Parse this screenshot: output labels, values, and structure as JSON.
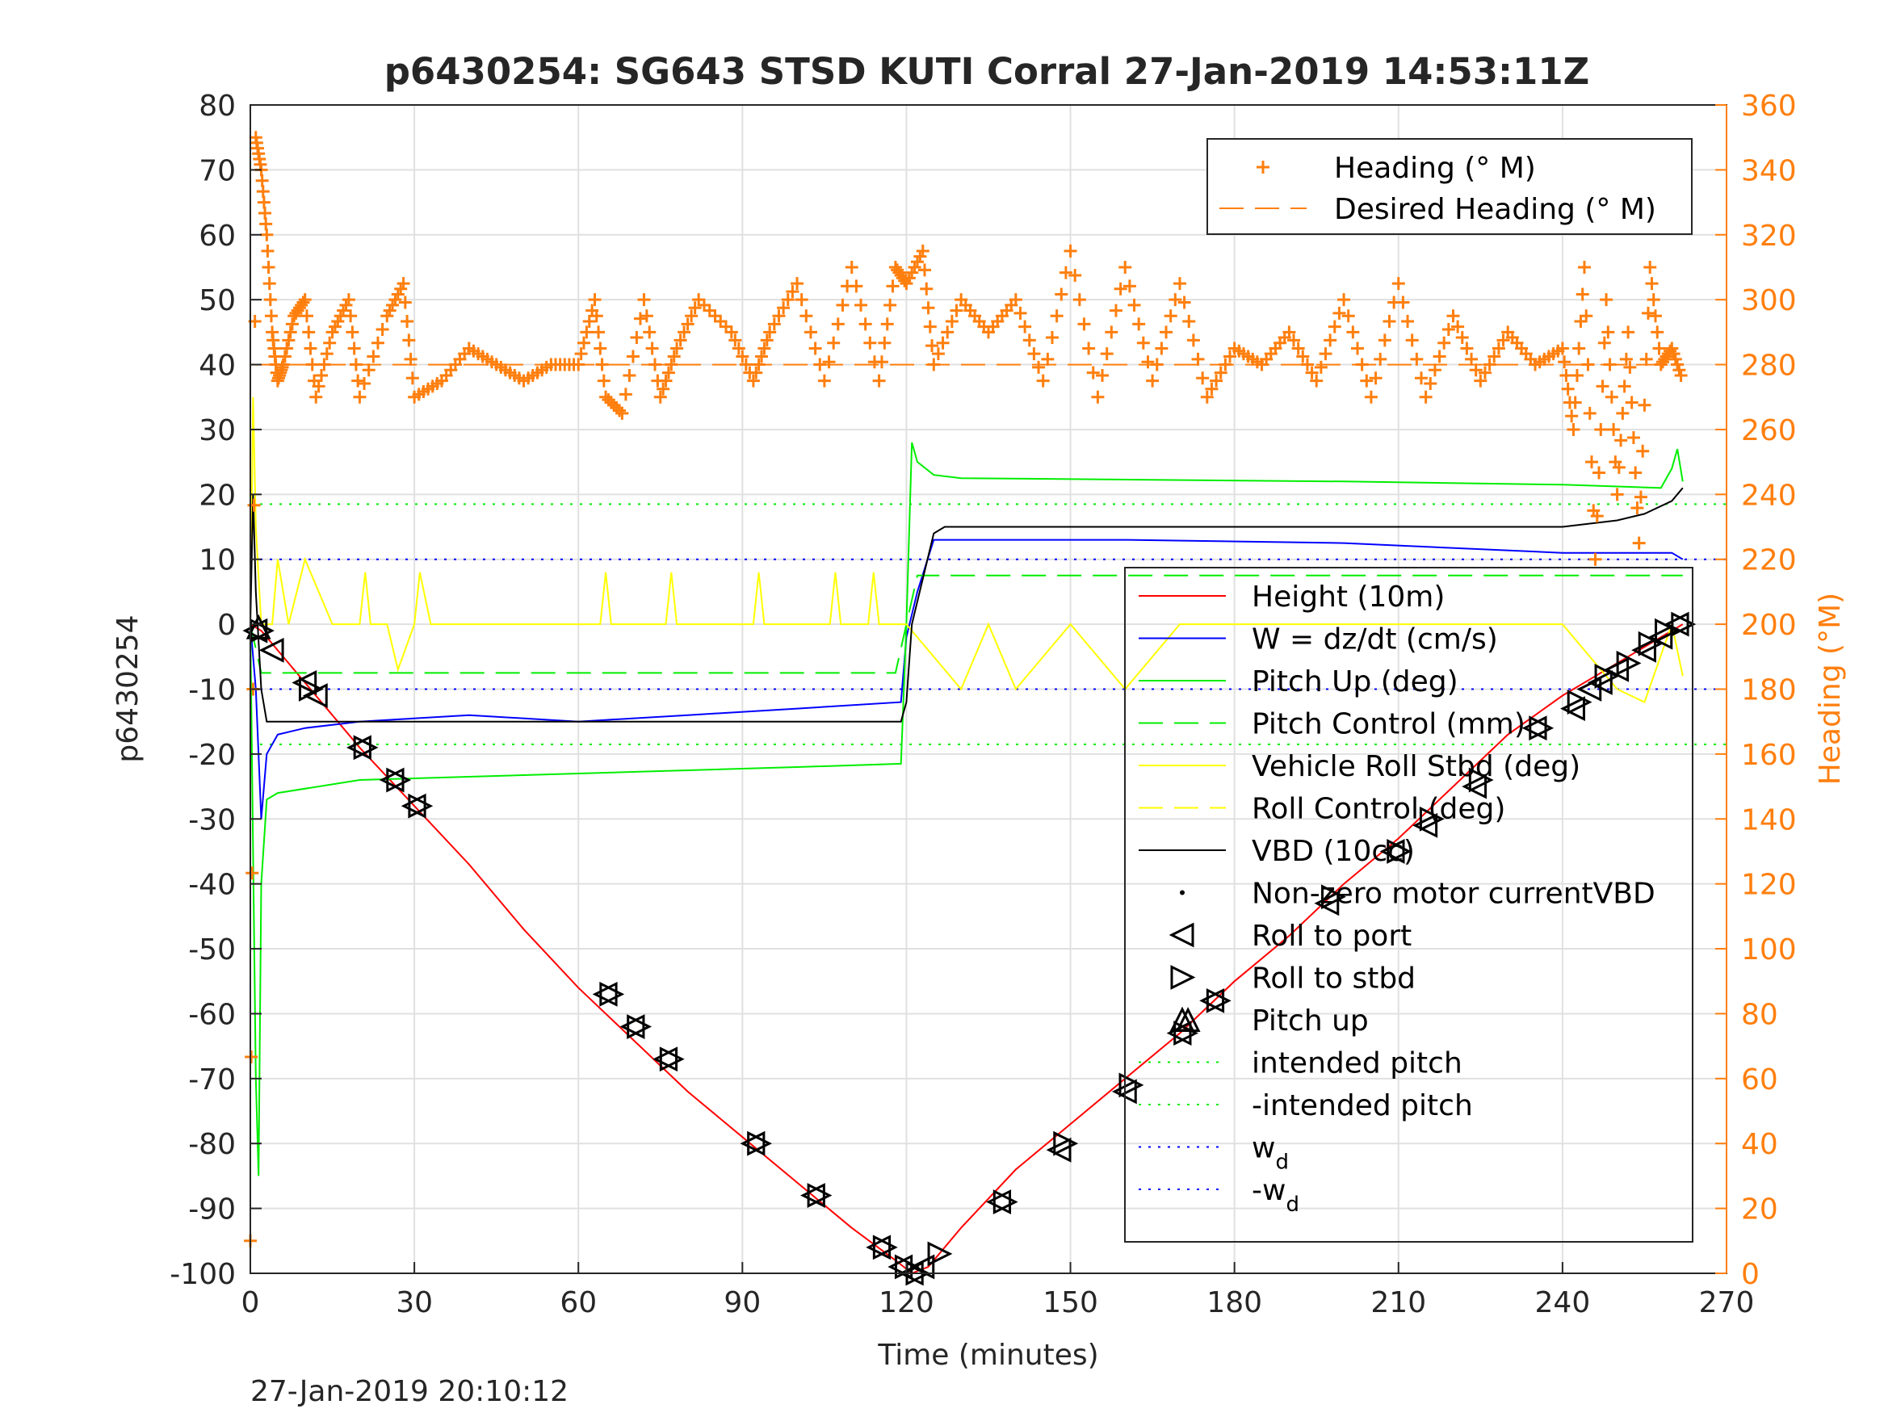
{
  "chart_data": {
    "type": "line",
    "title": "p6430254: SG643 STSD KUTI Corral 27-Jan-2019 14:53:11Z",
    "xlabel": "Time (minutes)",
    "ylabel": "p6430254",
    "ylabel_right": "Heading (°M)",
    "xlim": [
      0,
      270
    ],
    "ylim": [
      -100,
      80
    ],
    "ylim_right": [
      0,
      360
    ],
    "x_ticks": [
      "0",
      "30",
      "60",
      "90",
      "120",
      "150",
      "180",
      "210",
      "240",
      "270"
    ],
    "y_ticks": [
      "80",
      "70",
      "60",
      "50",
      "40",
      "30",
      "20",
      "10",
      "0",
      "-10",
      "-20",
      "-30",
      "-40",
      "-50",
      "-60",
      "-70",
      "-80",
      "-90",
      "-100"
    ],
    "y_ticks_right": [
      "360",
      "340",
      "320",
      "300",
      "280",
      "260",
      "240",
      "220",
      "200",
      "180",
      "160",
      "140",
      "120",
      "100",
      "80",
      "60",
      "40",
      "20",
      "0"
    ],
    "grid": true,
    "footer_timestamp": "27-Jan-2019 20:10:12",
    "colors": {
      "heading": "#ff7f0e",
      "height": "#ff0000",
      "w": "#0000ff",
      "pitch": "#00ee00",
      "roll": "#ffff00",
      "vbd": "#000000",
      "grid": "#e0e0e0"
    },
    "legend_top": {
      "placement": "top-right",
      "entries": [
        {
          "label": "Heading (° M)",
          "style": "plus",
          "color": "#ff7f0e"
        },
        {
          "label": "Desired Heading (° M)",
          "style": "dashed",
          "color": "#ff7f0e"
        }
      ]
    },
    "legend_bottom": {
      "placement": "bottom-right",
      "entries": [
        {
          "label": "Height (10m)",
          "style": "solid",
          "color": "#ff0000"
        },
        {
          "label": "W = dz/dt (cm/s)",
          "style": "solid",
          "color": "#0000ff"
        },
        {
          "label": "Pitch Up (deg)",
          "style": "solid",
          "color": "#00ee00"
        },
        {
          "label": "Pitch Control (mm)",
          "style": "dashed",
          "color": "#00ee00"
        },
        {
          "label": "Vehicle Roll Stbd (deg)",
          "style": "solid",
          "color": "#ffff00"
        },
        {
          "label": "Roll Control (deg)",
          "style": "dashed",
          "color": "#ffff00"
        },
        {
          "label": "VBD (10cc)",
          "style": "solid",
          "color": "#000000"
        },
        {
          "label": "Non-zero motor currentVBD",
          "style": "dot",
          "color": "#000000"
        },
        {
          "label": "Roll to port",
          "style": "tri-left",
          "color": "#000000"
        },
        {
          "label": "Roll to stbd",
          "style": "tri-right",
          "color": "#000000"
        },
        {
          "label": "Pitch up",
          "style": "tri-up",
          "color": "#000000"
        },
        {
          "label": "intended pitch",
          "style": "dotted",
          "color": "#00ee00"
        },
        {
          "label": "-intended pitch",
          "style": "dotted",
          "color": "#00ee00"
        },
        {
          "label": "w",
          "sub": "d",
          "style": "dotted",
          "color": "#0000ff"
        },
        {
          "label": "-w",
          "sub": "d",
          "style": "dotted",
          "color": "#0000ff"
        }
      ]
    },
    "series": [
      {
        "name": "Height (10m)",
        "axis": "left",
        "x": [
          0,
          2,
          10,
          20,
          30,
          40,
          50,
          60,
          70,
          80,
          90,
          100,
          110,
          118,
          121,
          124,
          130,
          140,
          150,
          160,
          170,
          180,
          190,
          200,
          210,
          220,
          230,
          240,
          250,
          262
        ],
        "y": [
          0,
          -1,
          -9,
          -19,
          -28,
          -37,
          -47,
          -56,
          -64,
          -72,
          -79,
          -86,
          -93,
          -98,
          -100,
          -99,
          -93,
          -84,
          -77,
          -70,
          -63,
          -55,
          -48,
          -40,
          -33,
          -25,
          -17,
          -11,
          -6,
          0
        ]
      },
      {
        "name": "W = dz/dt (cm/s)",
        "axis": "left",
        "x": [
          0,
          1,
          2,
          3,
          5,
          10,
          20,
          40,
          60,
          80,
          100,
          119,
          120,
          122,
          125,
          130,
          160,
          200,
          240,
          260,
          262
        ],
        "y": [
          0,
          -10,
          -30,
          -20,
          -17,
          -16,
          -15,
          -14,
          -15,
          -14,
          -13,
          -12,
          -2,
          5,
          13,
          13,
          13,
          12.5,
          11,
          11,
          10
        ]
      },
      {
        "name": "Pitch Up (deg)",
        "axis": "left",
        "x": [
          0,
          1,
          1.5,
          2,
          3,
          5,
          20,
          60,
          100,
          119,
          120,
          121,
          122,
          125,
          130,
          200,
          240,
          258,
          260,
          261,
          262
        ],
        "y": [
          0,
          -70,
          -85,
          -40,
          -27,
          -26,
          -24,
          -23,
          -22,
          -21.5,
          0,
          28,
          25,
          23,
          22.5,
          22,
          21.5,
          21,
          24,
          27,
          22
        ]
      },
      {
        "name": "Pitch Control (mm)",
        "axis": "left",
        "x": [
          0,
          2,
          118,
          120,
          122,
          262
        ],
        "y": [
          0,
          -7.5,
          -7.5,
          0,
          7.5,
          7.5
        ]
      },
      {
        "name": "Vehicle Roll Stbd (deg)",
        "axis": "left",
        "x": [
          0,
          0.5,
          1,
          2,
          4,
          5,
          7,
          10,
          15,
          20,
          21,
          22,
          25,
          27,
          30,
          31,
          33,
          60,
          64,
          65,
          66,
          70,
          76,
          77,
          78,
          90,
          92,
          93,
          94,
          105,
          106,
          107,
          108,
          113,
          114,
          115,
          119,
          120,
          130,
          135,
          140,
          150,
          160,
          170,
          200,
          230,
          240,
          250,
          255,
          260,
          262
        ],
        "y": [
          0,
          35,
          15,
          0,
          0,
          10,
          0,
          10,
          0,
          0,
          8,
          0,
          0,
          -7,
          0,
          8,
          0,
          0,
          0,
          8,
          0,
          0,
          0,
          8,
          0,
          0,
          0,
          8,
          0,
          0,
          0,
          8,
          0,
          0,
          8,
          0,
          0,
          0,
          -10,
          0,
          -10,
          0,
          -10,
          0,
          0,
          0,
          0,
          -10,
          -12,
          0,
          -8
        ]
      },
      {
        "name": "VBD (10cc)",
        "axis": "left",
        "x": [
          0,
          0.5,
          1,
          2,
          3,
          118,
          119,
          120,
          121,
          125,
          127,
          240,
          245,
          250,
          255,
          260,
          262
        ],
        "y": [
          0,
          20,
          5,
          -10,
          -15,
          -15,
          -15,
          -12,
          0,
          14,
          15,
          15,
          15.5,
          16,
          17,
          19,
          21
        ]
      },
      {
        "name": "Heading (° M)",
        "axis": "right",
        "x": [
          0,
          1,
          2,
          3,
          4,
          5,
          6,
          8,
          10,
          12,
          15,
          18,
          20,
          25,
          28,
          30,
          35,
          40,
          45,
          50,
          55,
          60,
          63,
          65,
          68,
          72,
          75,
          78,
          82,
          88,
          92,
          95,
          100,
          105,
          110,
          115,
          118,
          120,
          123,
          125,
          130,
          135,
          140,
          145,
          150,
          155,
          160,
          165,
          170,
          175,
          180,
          185,
          190,
          195,
          200,
          205,
          210,
          215,
          220,
          225,
          230,
          235,
          240,
          242,
          244,
          246,
          248,
          250,
          252,
          254,
          256,
          258,
          260,
          262
        ],
        "y": [
          10,
          350,
          340,
          320,
          290,
          275,
          280,
          295,
          300,
          270,
          290,
          300,
          270,
          295,
          305,
          270,
          275,
          285,
          280,
          275,
          280,
          280,
          300,
          270,
          265,
          300,
          270,
          285,
          300,
          290,
          275,
          290,
          305,
          275,
          310,
          275,
          310,
          305,
          315,
          280,
          300,
          290,
          300,
          275,
          315,
          270,
          310,
          275,
          305,
          270,
          285,
          280,
          290,
          275,
          300,
          270,
          305,
          270,
          295,
          275,
          290,
          280,
          285,
          260,
          310,
          220,
          300,
          240,
          290,
          225,
          310,
          280,
          285,
          275
        ]
      },
      {
        "name": "Desired Heading (° M)",
        "axis": "right",
        "x": [
          0,
          262
        ],
        "y": [
          280,
          280
        ]
      }
    ],
    "reference_lines": [
      {
        "name": "intended pitch",
        "y": 18.5,
        "color": "#00ee00"
      },
      {
        "name": "-intended pitch",
        "y": -18.5,
        "color": "#00ee00"
      },
      {
        "name": "w_d",
        "y": 10,
        "color": "#0000ff"
      },
      {
        "name": "-w_d",
        "y": -10,
        "color": "#0000ff"
      }
    ],
    "markers": {
      "roll_to_port": {
        "x": [
          1,
          4,
          10,
          12,
          20,
          26,
          30,
          65,
          70,
          76,
          92,
          103,
          115,
          119,
          121,
          123,
          137,
          148,
          160,
          170,
          176,
          197,
          209,
          215,
          224,
          235,
          242,
          245,
          247,
          250,
          255,
          258,
          261
        ],
        "y": [
          -1,
          -4,
          -9,
          -11,
          -19,
          -24,
          -28,
          -57,
          -62,
          -67,
          -80,
          -88,
          -96,
          -99,
          -100,
          -99,
          -89,
          -81,
          -72,
          -63,
          -58,
          -43,
          -35,
          -31,
          -25,
          -16,
          -13,
          -10,
          -9,
          -7,
          -4,
          -2,
          0
        ]
      },
      "roll_to_stbd": {
        "x": [
          2,
          11,
          21,
          27,
          31,
          66,
          71,
          77,
          93,
          104,
          116,
          120,
          122,
          126,
          138,
          149,
          161,
          171,
          177,
          198,
          210,
          216,
          225,
          236,
          243,
          248,
          252,
          256,
          259,
          262
        ],
        "y": [
          -1,
          -10,
          -19,
          -24,
          -28,
          -57,
          -62,
          -67,
          -80,
          -88,
          -96,
          -99,
          -100,
          -97,
          -89,
          -80,
          -71,
          -63,
          -58,
          -42,
          -35,
          -30,
          -24,
          -16,
          -12,
          -8,
          -6,
          -3,
          -1,
          0
        ]
      },
      "pitch_up": {
        "x": [
          1.5,
          171.5
        ],
        "y": [
          -0.5,
          -61
        ]
      }
    }
  }
}
